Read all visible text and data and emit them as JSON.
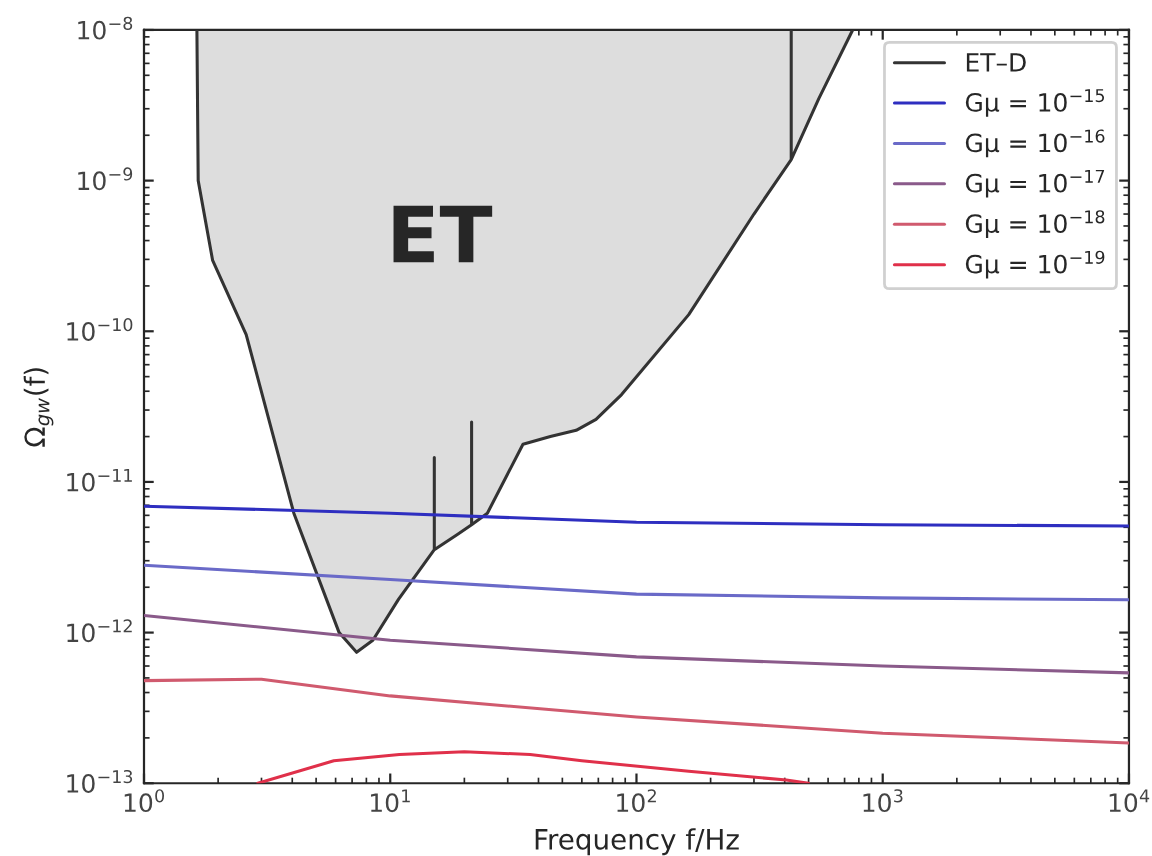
{
  "chart_data": {
    "type": "line",
    "log": "xy",
    "xlabel": "Frequency f/Hz",
    "ylabel": "Ω$_{gw}$(f)",
    "annotations": [
      "ET"
    ],
    "xlim": [
      1,
      10000
    ],
    "ylim": [
      1e-13,
      1e-08
    ],
    "xticks": [
      {
        "value": 1,
        "label": "10$^{0}$"
      },
      {
        "value": 10,
        "label": "10$^{1}$"
      },
      {
        "value": 100,
        "label": "10$^{2}$"
      },
      {
        "value": 1000,
        "label": "10$^{3}$"
      },
      {
        "value": 10000,
        "label": "10$^{4}$"
      }
    ],
    "yticks": [
      {
        "value": 1e-13,
        "label": "10$^{−13}$"
      },
      {
        "value": 1e-12,
        "label": "10$^{−12}$"
      },
      {
        "value": 1e-11,
        "label": "10$^{−11}$"
      },
      {
        "value": 1e-10,
        "label": "10$^{−10}$"
      },
      {
        "value": 1e-09,
        "label": "10$^{−9}$"
      },
      {
        "value": 1e-08,
        "label": "10$^{−8}$"
      }
    ],
    "legend": "top right",
    "grid": false,
    "series": [
      {
        "name": "ET–D",
        "color": "#333333",
        "x": [
          1.64,
          1.66,
          1.9,
          2.6,
          4.06,
          6.2,
          7.3,
          8.5,
          10.8,
          15.1,
          15.1,
          15.1,
          18.8,
          21.4,
          21.4,
          21.4,
          24.8,
          34.6,
          44.7,
          56.9,
          68.5,
          87,
          163,
          300,
          425,
          425,
          425,
          550,
          755
        ],
        "values": [
          1e-08,
          1e-09,
          2.95e-10,
          9.5e-11,
          6.2e-12,
          1e-12,
          7.4e-13,
          8.9e-13,
          1.66e-12,
          3.55e-12,
          1.45e-11,
          3.55e-12,
          4.5e-12,
          5.2e-12,
          2.5e-11,
          5.2e-12,
          6.2e-12,
          1.78e-11,
          2e-11,
          2.2e-11,
          2.6e-11,
          3.8e-11,
          1.29e-10,
          6e-10,
          1.38e-09,
          1e-08,
          1.38e-09,
          3.5e-09,
          1e-08
        ]
      },
      {
        "name": "Gμ = 10$^{−15}$",
        "color": "#2e2ec0",
        "x": [
          1,
          10,
          100,
          1000,
          10000
        ],
        "values": [
          6.9e-12,
          6.2e-12,
          5.4e-12,
          5.2e-12,
          5.1e-12
        ]
      },
      {
        "name": "Gμ = 10$^{−16}$",
        "color": "#6a6ac8",
        "x": [
          1,
          10,
          100,
          1000,
          10000
        ],
        "values": [
          2.8e-12,
          2.25e-12,
          1.8e-12,
          1.7e-12,
          1.65e-12
        ]
      },
      {
        "name": "Gμ = 10$^{−17}$",
        "color": "#8a5a8a",
        "x": [
          1,
          10,
          100,
          1000,
          10000
        ],
        "values": [
          1.3e-12,
          8.9e-13,
          6.9e-13,
          6e-13,
          5.4e-13
        ]
      },
      {
        "name": "Gμ = 10$^{−18}$",
        "color": "#d05a6e",
        "x": [
          1,
          3,
          10,
          100,
          1000,
          10000
        ],
        "values": [
          4.8e-13,
          4.9e-13,
          3.8e-13,
          2.75e-13,
          2.15e-13,
          1.85e-13
        ]
      },
      {
        "name": "Gμ = 10$^{−19}$",
        "color": "#e0304a",
        "x": [
          2.9,
          5.9,
          10.9,
          20,
          37,
          60,
          163,
          406,
          500
        ],
        "values": [
          1e-13,
          1.41e-13,
          1.55e-13,
          1.62e-13,
          1.55e-13,
          1.41e-13,
          1.2e-13,
          1.05e-13,
          1e-13
        ]
      }
    ]
  }
}
